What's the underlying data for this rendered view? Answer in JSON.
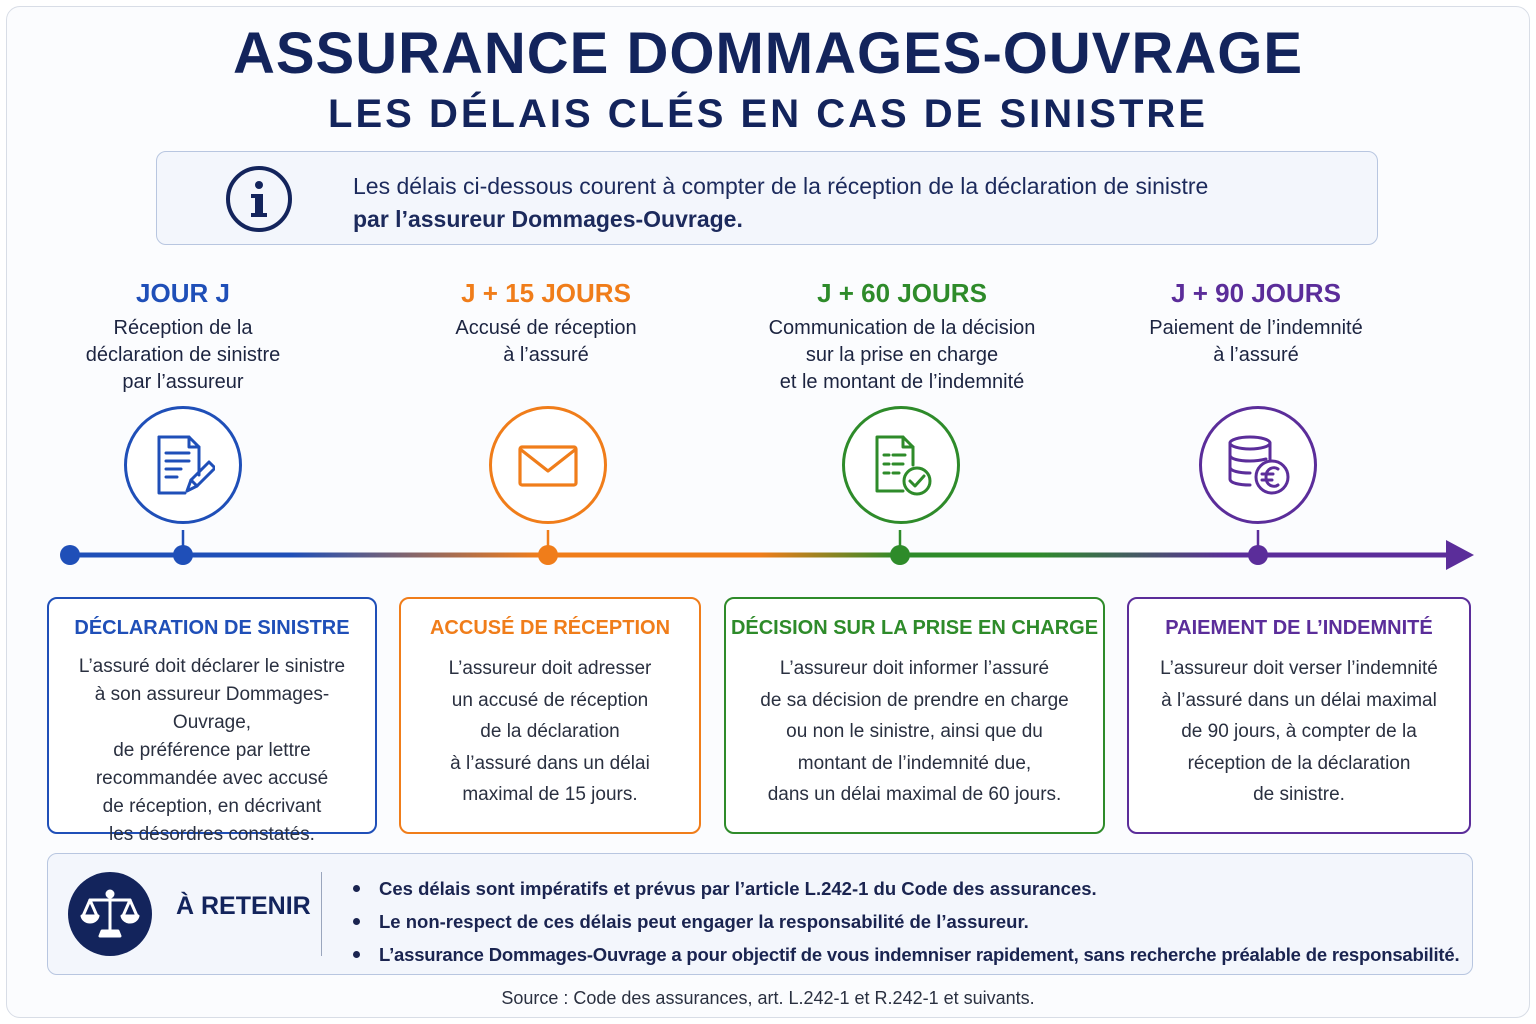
{
  "header": {
    "title": "ASSURANCE DOMMAGES-OUVRAGE",
    "subtitle": "LES DÉLAIS CLÉS EN CAS DE SINISTRE"
  },
  "info": {
    "icon": "info-icon",
    "line1": "Les délais ci-dessous courent à compter de la réception de la déclaration de sinistre",
    "line2": "par l’assureur Dommages-Ouvrage."
  },
  "colors": {
    "navy": "#13245c",
    "blue": "#1f4fb8",
    "orange": "#f07d1a",
    "green": "#2e8b2a",
    "purple": "#5b2d9a"
  },
  "steps": [
    {
      "label": "JOUR J",
      "description": [
        "Réception de la",
        "déclaration de sinistre",
        "par l’assureur"
      ],
      "icon": "document-edit-icon"
    },
    {
      "label": "J + 15 JOURS",
      "description": [
        "Accusé de réception",
        "à l’assuré"
      ],
      "icon": "envelope-icon"
    },
    {
      "label": "J + 60 JOURS",
      "description": [
        "Communication de la décision",
        "sur la prise en charge",
        "et le montant de l’indemnité"
      ],
      "icon": "document-check-icon"
    },
    {
      "label": "J + 90 JOURS",
      "description": [
        "Paiement de l’indemnité",
        "à l’assuré"
      ],
      "icon": "coins-euro-icon"
    }
  ],
  "cards": [
    {
      "title": "DÉCLARATION DE SINISTRE",
      "lines": [
        "L’assuré doit déclarer le sinistre",
        "à son assureur Dommages-Ouvrage,",
        "de préférence par lettre",
        "recommandée avec accusé",
        "de réception, en décrivant",
        "les désordres constatés."
      ]
    },
    {
      "title": "ACCUSÉ DE RÉCEPTION",
      "lines": [
        "L’assureur doit adresser",
        "un accusé de réception",
        "de la déclaration",
        "à l’assuré dans un délai",
        "maximal de 15 jours."
      ]
    },
    {
      "title": "DÉCISION SUR LA PRISE EN CHARGE",
      "lines": [
        "L’assureur doit informer l’assuré",
        "de sa décision de prendre en charge",
        "ou non le sinistre, ainsi que du",
        "montant de l’indemnité due,",
        "dans un délai maximal de 60 jours."
      ]
    },
    {
      "title": "PAIEMENT DE L’INDEMNITÉ",
      "lines": [
        "L’assureur doit verser l’indemnité",
        "à l’assuré dans un délai maximal",
        "de 90 jours, à compter de la",
        "réception de la déclaration",
        "de sinistre."
      ]
    }
  ],
  "retain": {
    "icon": "scales-of-justice-icon",
    "label": "À RETENIR",
    "items": [
      "Ces délais sont impératifs et prévus par l’article L.242-1 du Code des assurances.",
      "Le non-respect de ces délais peut engager la responsabilité de l’assureur.",
      "L’assurance Dommages-Ouvrage a pour objectif de vous indemniser rapidement, sans recherche préalable de responsabilité."
    ]
  },
  "footer": {
    "source": "Source : Code des assurances, art. L.242-1 et R.242-1 et suivants."
  }
}
